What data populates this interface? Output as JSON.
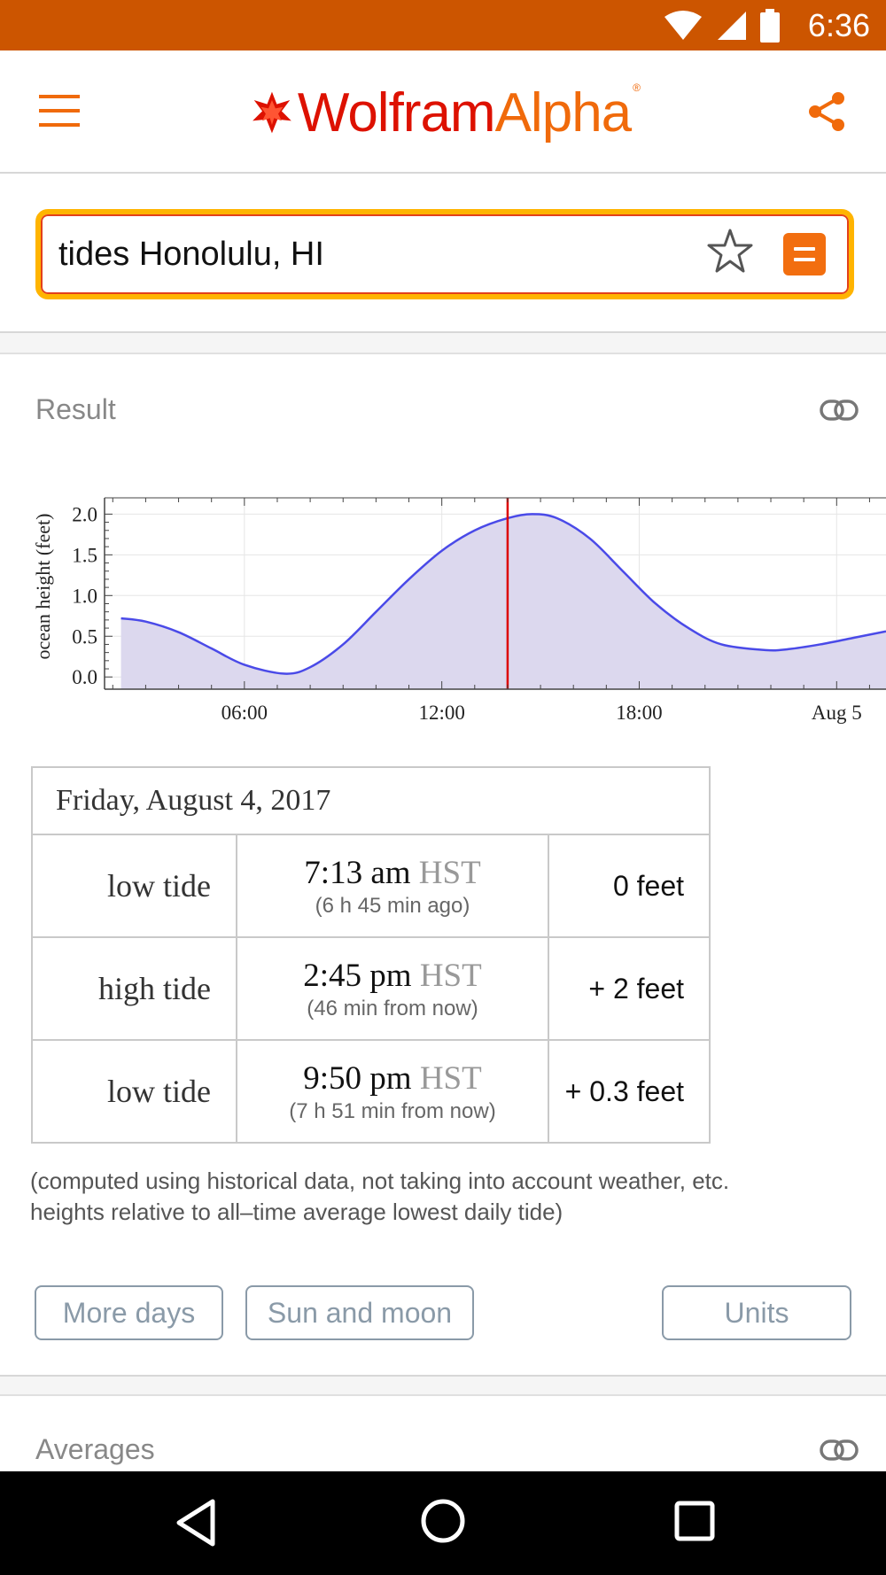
{
  "status_bar": {
    "time": "6:36"
  },
  "header": {
    "logo_part1": "Wolfram",
    "logo_part2": "Alpha",
    "logo_mark": "®"
  },
  "search": {
    "query": "tides Honolulu, HI"
  },
  "result_pod": {
    "title": "Result",
    "table": {
      "date": "Friday, August 4, 2017",
      "rows": [
        {
          "type": "low tide",
          "time": "7:13 am",
          "tz": "HST",
          "relative": "(6 h  45 min ago)",
          "height": "0 feet"
        },
        {
          "type": "high tide",
          "time": "2:45 pm",
          "tz": "HST",
          "relative": "(46 min from now)",
          "height": "+ 2 feet"
        },
        {
          "type": "low tide",
          "time": "9:50 pm",
          "tz": "HST",
          "relative": "(7 h  51 min from now)",
          "height": "+ 0.3 feet"
        }
      ]
    },
    "note_line1": "(computed using historical data, not taking into account weather, etc.",
    "note_line2": "heights relative to all–time average lowest daily tide)",
    "buttons": {
      "more_days": "More days",
      "sun_and_moon": "Sun and moon",
      "units": "Units"
    }
  },
  "averages_pod": {
    "title": "Averages"
  },
  "chart_data": {
    "type": "area",
    "ylabel": "ocean height (feet)",
    "y_ticks": [
      "0.0",
      "0.5",
      "1.0",
      "1.5",
      "2.0"
    ],
    "ylim": [
      -0.15,
      2.2
    ],
    "x_ticks": [
      {
        "hour": 6,
        "label": "06:00"
      },
      {
        "hour": 12,
        "label": "12:00"
      },
      {
        "hour": 18,
        "label": "18:00"
      },
      {
        "hour": 24,
        "label": "Aug 5"
      }
    ],
    "xlim": [
      1.75,
      25.5
    ],
    "x_hours": [
      2.25,
      3,
      4,
      5,
      6,
      7.22,
      8,
      9,
      10,
      11,
      12,
      13,
      14,
      14.75,
      15.5,
      16.5,
      17.5,
      18.5,
      19.5,
      20.5,
      21.83,
      22.5,
      23.5,
      24.5,
      25.5
    ],
    "y_feet": [
      0.72,
      0.68,
      0.55,
      0.35,
      0.15,
      0.04,
      0.12,
      0.4,
      0.8,
      1.2,
      1.55,
      1.8,
      1.95,
      2.0,
      1.95,
      1.7,
      1.3,
      0.9,
      0.6,
      0.4,
      0.33,
      0.34,
      0.4,
      0.48,
      0.56
    ],
    "current_time_hour": 14,
    "colors": {
      "line": "#4a4ae8",
      "fill": "#dcd8ee",
      "now_marker": "#dd0000"
    }
  }
}
